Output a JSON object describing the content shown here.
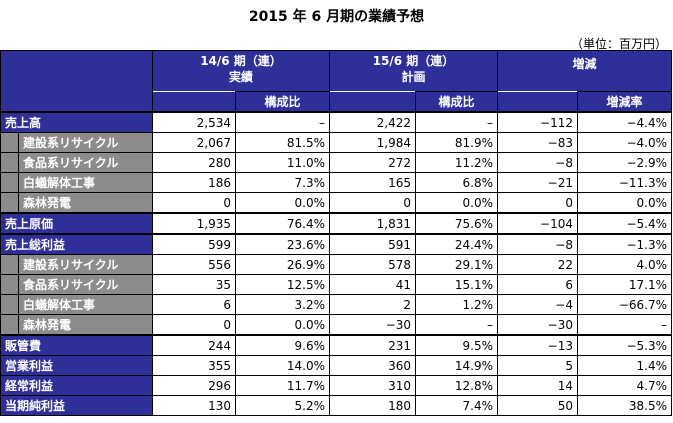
{
  "title": "2015 年 6 月期の業績予想",
  "unit": "（単位：百万円）",
  "headers": {
    "col1_line1": "14/6 期（連）",
    "col1_line2": "実績",
    "col2_line1": "15/6 期（連）",
    "col2_line2": "計画",
    "col3": "増減",
    "ratio": "構成比",
    "change_rate": "増減率"
  },
  "rows": [
    {
      "label": "売上高",
      "type": "main",
      "v1": "2,534",
      "r1": "–",
      "v2": "2,422",
      "r2": "–",
      "chg": "−112",
      "rate": "−4.4%"
    },
    {
      "label": "建設系リサイクル",
      "type": "sub",
      "v1": "2,067",
      "r1": "81.5%",
      "v2": "1,984",
      "r2": "81.9%",
      "chg": "−83",
      "rate": "−4.0%"
    },
    {
      "label": "食品系リサイクル",
      "type": "sub",
      "v1": "280",
      "r1": "11.0%",
      "v2": "272",
      "r2": "11.2%",
      "chg": "−8",
      "rate": "−2.9%"
    },
    {
      "label": "白蟻解体工事",
      "type": "sub",
      "v1": "186",
      "r1": "7.3%",
      "v2": "165",
      "r2": "6.8%",
      "chg": "−21",
      "rate": "−11.3%"
    },
    {
      "label": "森林発電",
      "type": "sub",
      "v1": "0",
      "r1": "0.0%",
      "v2": "0",
      "r2": "0.0%",
      "chg": "0",
      "rate": "0.0%"
    },
    {
      "label": "売上原価",
      "type": "main",
      "v1": "1,935",
      "r1": "76.4%",
      "v2": "1,831",
      "r2": "75.6%",
      "chg": "−104",
      "rate": "−5.4%"
    },
    {
      "label": "売上総利益",
      "type": "main",
      "v1": "599",
      "r1": "23.6%",
      "v2": "591",
      "r2": "24.4%",
      "chg": "−8",
      "rate": "−1.3%"
    },
    {
      "label": "建設系リサイクル",
      "type": "sub",
      "v1": "556",
      "r1": "26.9%",
      "v2": "578",
      "r2": "29.1%",
      "chg": "22",
      "rate": "4.0%"
    },
    {
      "label": "食品系リサイクル",
      "type": "sub",
      "v1": "35",
      "r1": "12.5%",
      "v2": "41",
      "r2": "15.1%",
      "chg": "6",
      "rate": "17.1%"
    },
    {
      "label": "白蟻解体工事",
      "type": "sub",
      "v1": "6",
      "r1": "3.2%",
      "v2": "2",
      "r2": "1.2%",
      "chg": "−4",
      "rate": "−66.7%"
    },
    {
      "label": "森林発電",
      "type": "sub",
      "v1": "0",
      "r1": "0.0%",
      "v2": "−30",
      "r2": "–",
      "chg": "−30",
      "rate": "–"
    },
    {
      "label": "販管費",
      "type": "main",
      "v1": "244",
      "r1": "9.6%",
      "v2": "231",
      "r2": "9.5%",
      "chg": "−13",
      "rate": "−5.3%"
    },
    {
      "label": "営業利益",
      "type": "main",
      "v1": "355",
      "r1": "14.0%",
      "v2": "360",
      "r2": "14.9%",
      "chg": "5",
      "rate": "1.4%"
    },
    {
      "label": "経常利益",
      "type": "main",
      "v1": "296",
      "r1": "11.7%",
      "v2": "310",
      "r2": "12.8%",
      "chg": "14",
      "rate": "4.7%"
    },
    {
      "label": "当期純利益",
      "type": "main",
      "v1": "130",
      "r1": "5.2%",
      "v2": "180",
      "r2": "7.4%",
      "chg": "50",
      "rate": "38.5%"
    }
  ],
  "colors": {
    "header_bg": "#2f2f9a",
    "sub_bg": "#8c8c8c"
  }
}
